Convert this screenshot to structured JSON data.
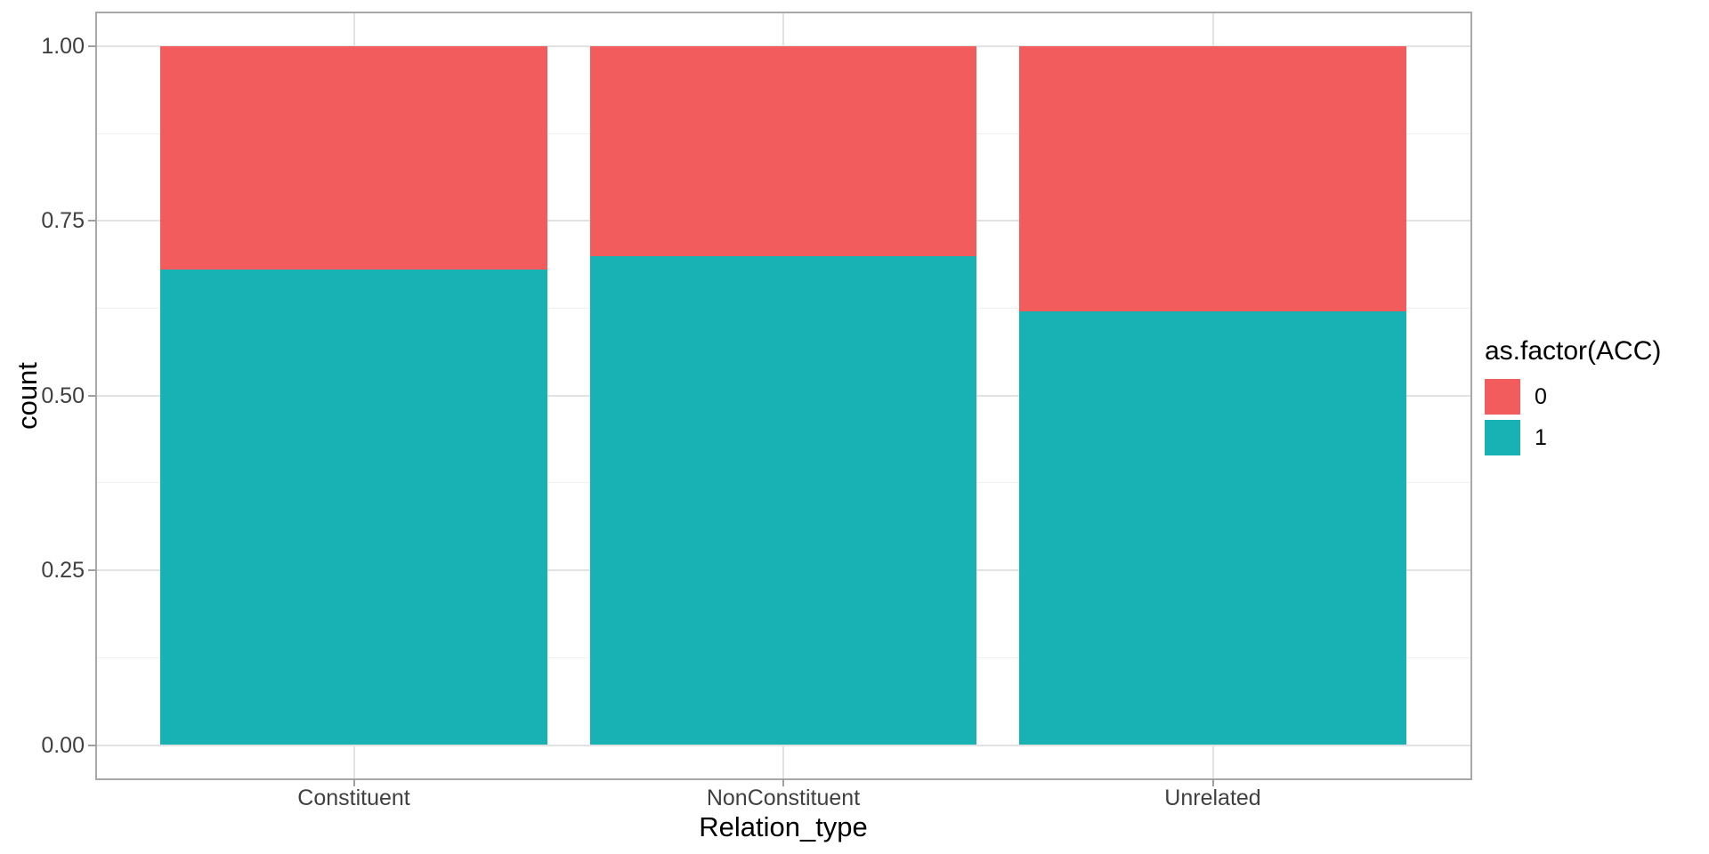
{
  "chart_data": {
    "type": "bar",
    "stacking": "fill",
    "title": "",
    "xlabel": "Relation_type",
    "ylabel": "count",
    "categories": [
      "Constituent",
      "NonConstituent",
      "Unrelated"
    ],
    "series": [
      {
        "name": "1",
        "color": "#18b2b5",
        "values": [
          0.68,
          0.7,
          0.62
        ]
      },
      {
        "name": "0",
        "color": "#f25c5c",
        "values": [
          0.32,
          0.3,
          0.38
        ]
      }
    ],
    "ylim": [
      0,
      1
    ],
    "ytick_labels": [
      "0.00",
      "0.25",
      "0.50",
      "0.75",
      "1.00"
    ],
    "ytick_values": [
      0,
      0.25,
      0.5,
      0.75,
      1
    ],
    "ytick_minor_values": [
      0.125,
      0.375,
      0.625,
      0.875
    ],
    "grid": {
      "major": true,
      "minor": true
    },
    "legend": {
      "title": "as.factor(ACC)",
      "position": "right",
      "entries": [
        {
          "label": "0",
          "color": "#f25c5c"
        },
        {
          "label": "1",
          "color": "#18b2b5"
        }
      ]
    },
    "colors": {
      "bar_red": "#f25c5c",
      "bar_teal": "#18b2b5",
      "grid_major": "#e2e2e2",
      "grid_minor": "#f0f0f0",
      "panel_border": "#a8a8a8",
      "axis_tick": "#a0a0a0",
      "axis_text": "#404040",
      "title_text": "#000000",
      "background": "#ffffff"
    }
  }
}
